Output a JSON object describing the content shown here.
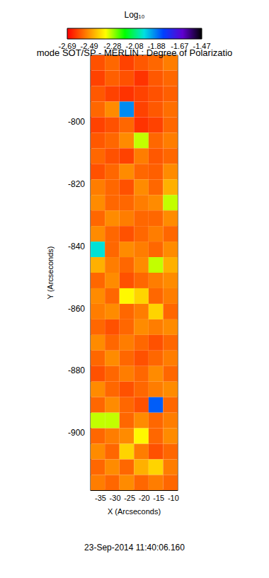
{
  "chart_data": {
    "type": "heatmap",
    "title": "mode SOT/SP - MERLIN : Degree of Polarizatio",
    "subtitle": "23-Sep-2014 11:40:06.160",
    "x_label": "X (Arcseconds)",
    "y_label": "Y (Arcseconds)",
    "xlim": [
      -38.4,
      -8.5
    ],
    "ylim": [
      -918.4,
      -778.6
    ],
    "xticks": [
      -35,
      -30,
      -25,
      -20,
      -15,
      -10
    ],
    "yticks": [
      -900,
      -880,
      -860,
      -840,
      -820,
      -800
    ],
    "x": [
      -36,
      -31,
      -26,
      -21,
      -16,
      -11
    ],
    "y": [
      -781,
      -786,
      -791,
      -796,
      -801,
      -806,
      -811,
      -816,
      -821,
      -826,
      -831,
      -836,
      -841,
      -846,
      -851,
      -856,
      -861,
      -866,
      -871,
      -876,
      -881,
      -886,
      -891,
      -896,
      -901,
      -906,
      -911,
      -916
    ],
    "cells": [
      [
        -2.58,
        -2.55,
        -2.6,
        -2.57,
        -2.55,
        -2.52
      ],
      [
        -2.6,
        -2.56,
        -2.58,
        -2.62,
        -2.57,
        -2.55
      ],
      [
        -2.57,
        -2.6,
        -2.62,
        -2.6,
        -2.58,
        -2.56
      ],
      [
        -2.55,
        -2.5,
        -1.9,
        -2.6,
        -2.57,
        -2.54
      ],
      [
        -2.6,
        -2.58,
        -2.55,
        -2.62,
        -2.6,
        -2.55
      ],
      [
        -2.57,
        -2.55,
        -2.5,
        -2.3,
        -2.55,
        -2.52
      ],
      [
        -2.55,
        -2.58,
        -2.6,
        -2.52,
        -2.57,
        -2.55
      ],
      [
        -2.58,
        -2.55,
        -2.5,
        -2.55,
        -2.56,
        -2.5
      ],
      [
        -2.52,
        -2.55,
        -2.58,
        -2.5,
        -2.55,
        -2.45
      ],
      [
        -2.5,
        -2.55,
        -2.55,
        -2.52,
        -2.5,
        -2.3
      ],
      [
        -2.55,
        -2.5,
        -2.52,
        -2.55,
        -2.55,
        -2.5
      ],
      [
        -2.5,
        -2.55,
        -2.58,
        -2.55,
        -2.52,
        -2.55
      ],
      [
        -2.0,
        -2.55,
        -2.5,
        -2.52,
        -2.55,
        -2.5
      ],
      [
        -2.45,
        -2.52,
        -2.55,
        -2.5,
        -2.3,
        -2.45
      ],
      [
        -2.55,
        -2.5,
        -2.58,
        -2.55,
        -2.52,
        -2.5
      ],
      [
        -2.5,
        -2.55,
        -2.35,
        -2.4,
        -2.55,
        -2.52
      ],
      [
        -2.52,
        -2.5,
        -2.55,
        -2.52,
        -2.4,
        -2.55
      ],
      [
        -2.55,
        -2.58,
        -2.55,
        -2.5,
        -2.52,
        -2.5
      ],
      [
        -2.5,
        -2.55,
        -2.52,
        -2.55,
        -2.58,
        -2.55
      ],
      [
        -2.55,
        -2.5,
        -2.55,
        -2.58,
        -2.55,
        -2.52
      ],
      [
        -2.58,
        -2.55,
        -2.52,
        -2.55,
        -2.5,
        -2.55
      ],
      [
        -2.5,
        -2.55,
        -2.58,
        -2.55,
        -2.52,
        -2.5
      ],
      [
        -2.55,
        -2.5,
        -2.55,
        -2.58,
        -1.85,
        -2.55
      ],
      [
        -2.3,
        -2.3,
        -2.55,
        -2.5,
        -2.55,
        -2.52
      ],
      [
        -2.55,
        -2.52,
        -2.5,
        -2.35,
        -2.55,
        -2.5
      ],
      [
        -2.5,
        -2.55,
        -2.4,
        -2.52,
        -2.58,
        -2.55
      ],
      [
        -2.55,
        -2.5,
        -2.55,
        -2.45,
        -2.4,
        -2.52
      ],
      [
        -2.52,
        -2.55,
        -2.5,
        -2.55,
        -2.52,
        -2.55
      ]
    ],
    "colorbar": {
      "label": "Log₁₀",
      "range": [
        -2.69,
        -1.47
      ],
      "ticks": [
        -2.69,
        -2.49,
        -2.28,
        -2.08,
        -1.88,
        -1.67,
        -1.47
      ]
    }
  }
}
